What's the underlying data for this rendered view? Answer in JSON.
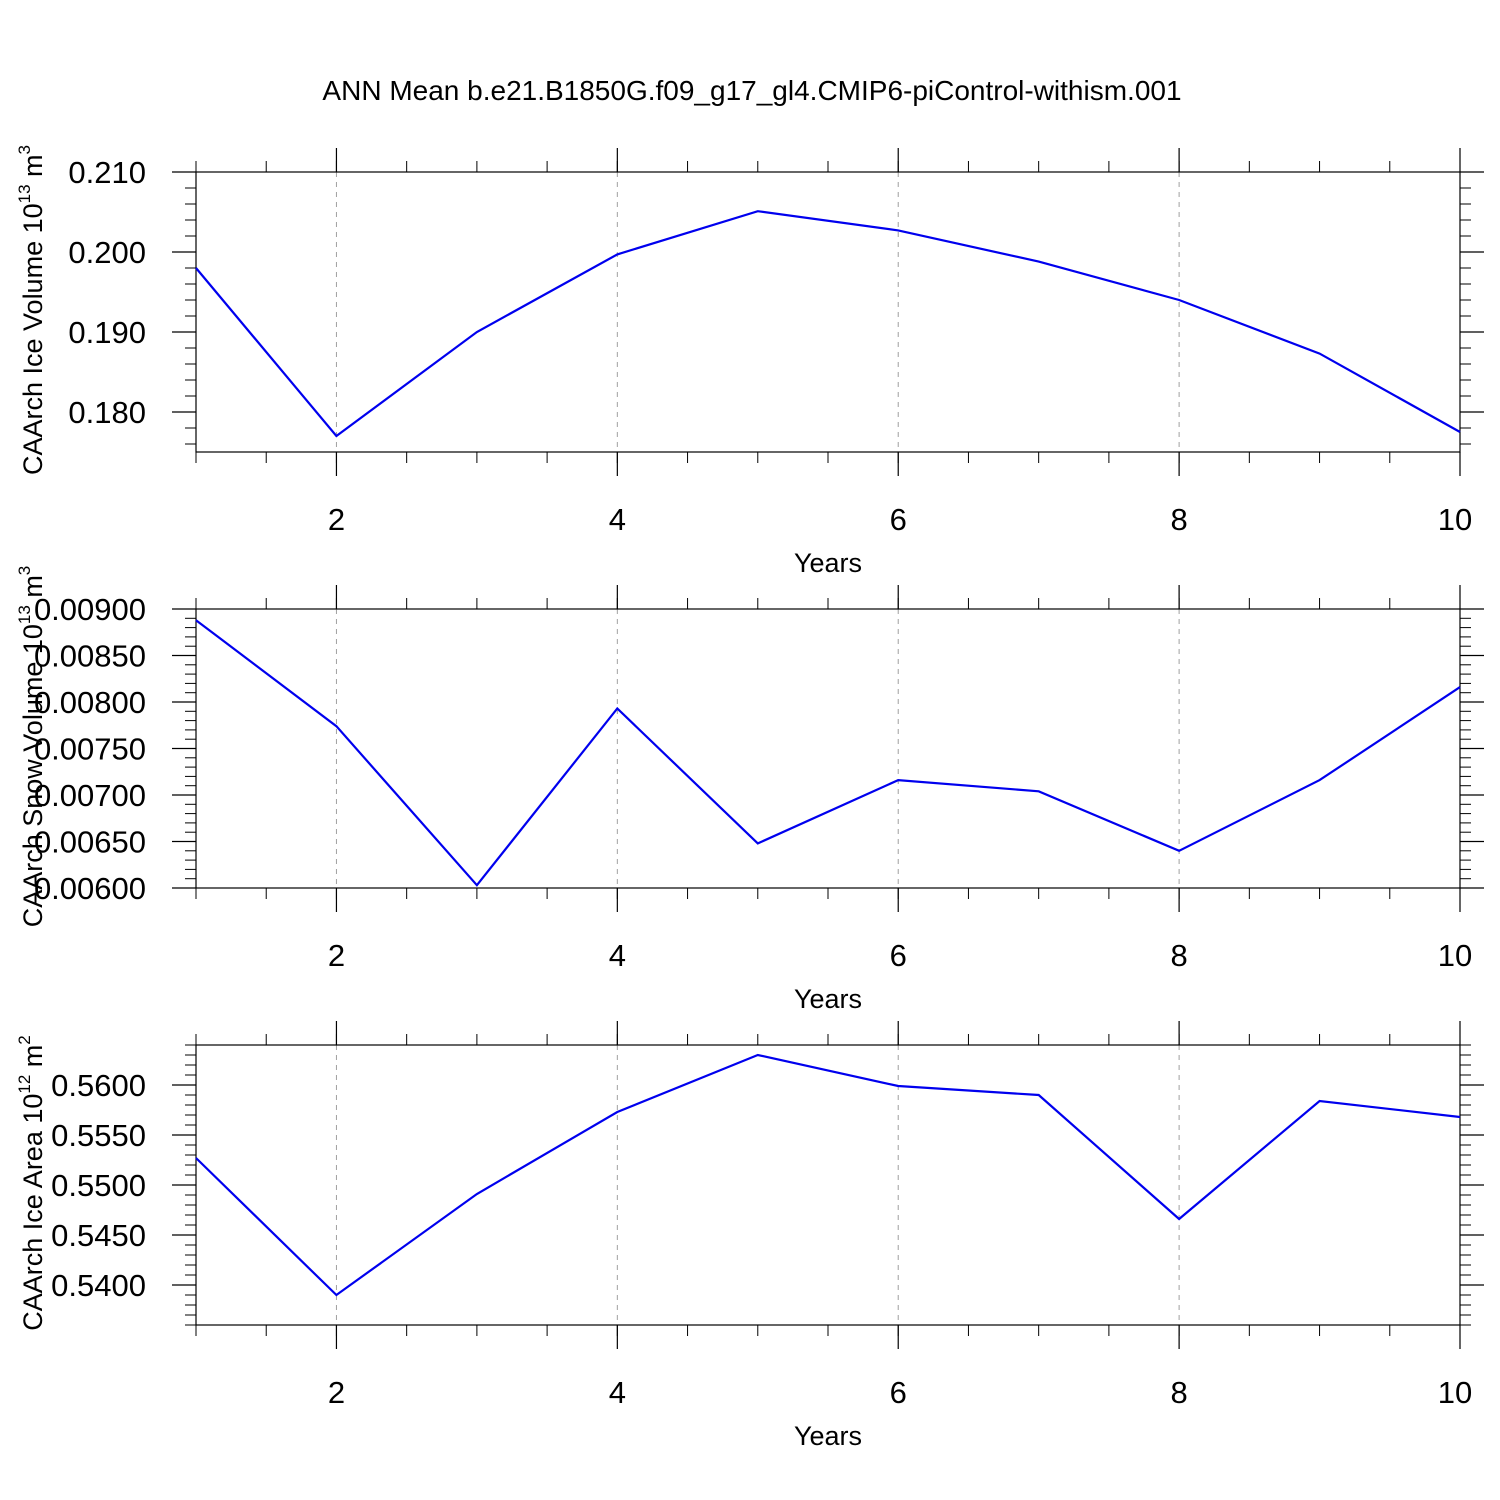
{
  "title": "ANN Mean b.e21.B1850G.f09_g17_gl4.CMIP6-piControl-withism.001",
  "colors": {
    "line": "#0000ee",
    "axis": "#000000",
    "grid": "#a0a0a0"
  },
  "chart_data": [
    {
      "type": "line",
      "xlabel": "Years",
      "ylabel": {
        "text": "CAArch Ice Volume 10",
        "exp": "13",
        "unit": " m",
        "unit_exp": "3"
      },
      "xlim": [
        1,
        10
      ],
      "ylim": [
        0.175,
        0.21
      ],
      "xticks": [
        2,
        4,
        6,
        8,
        10
      ],
      "yticks": [
        0.18,
        0.19,
        0.2,
        0.21
      ],
      "ytick_labels": [
        "0.180",
        "0.190",
        "0.200",
        "0.210"
      ],
      "grid": "vertical dashed at major x ticks",
      "x": [
        1,
        2,
        3,
        4,
        5,
        6,
        7,
        8,
        9,
        10
      ],
      "y": [
        0.198,
        0.177,
        0.19,
        0.1997,
        0.2051,
        0.2027,
        0.1988,
        0.194,
        0.1873,
        0.1775
      ]
    },
    {
      "type": "line",
      "xlabel": "Years",
      "ylabel": {
        "text": "CAArch Snow Volume 10",
        "exp": "13",
        "unit": " m",
        "unit_exp": "3"
      },
      "xlim": [
        1,
        10
      ],
      "ylim": [
        0.006,
        0.009
      ],
      "xticks": [
        2,
        4,
        6,
        8,
        10
      ],
      "yticks": [
        0.006,
        0.0065,
        0.007,
        0.0075,
        0.008,
        0.0085,
        0.009
      ],
      "ytick_labels": [
        "0.00600",
        "0.00650",
        "0.00700",
        "0.00750",
        "0.00800",
        "0.00850",
        "0.00900"
      ],
      "grid": "vertical dashed at major x ticks",
      "x": [
        1,
        2,
        3,
        4,
        5,
        6,
        7,
        8,
        9,
        10
      ],
      "y": [
        0.00888,
        0.00774,
        0.00603,
        0.00793,
        0.00648,
        0.00716,
        0.00704,
        0.0064,
        0.00716,
        0.00816
      ]
    },
    {
      "type": "line",
      "xlabel": "Years",
      "ylabel": {
        "text": "CAArch Ice Area 10",
        "exp": "12",
        "unit": " m",
        "unit_exp": "2"
      },
      "xlim": [
        1,
        10
      ],
      "ylim": [
        0.536,
        0.564
      ],
      "xticks": [
        2,
        4,
        6,
        8,
        10
      ],
      "yticks": [
        0.54,
        0.545,
        0.55,
        0.555,
        0.56
      ],
      "ytick_labels": [
        "0.5400",
        "0.5450",
        "0.5500",
        "0.5550",
        "0.5600"
      ],
      "grid": "vertical dashed at major x ticks",
      "x": [
        1,
        2,
        3,
        4,
        5,
        6,
        7,
        8,
        9,
        10
      ],
      "y": [
        0.5527,
        0.539,
        0.5491,
        0.5573,
        0.563,
        0.5599,
        0.559,
        0.5466,
        0.5584,
        0.5568
      ]
    }
  ]
}
